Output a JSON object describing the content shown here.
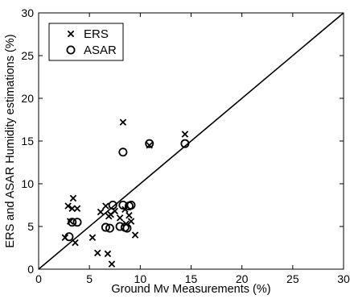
{
  "chart_data": {
    "type": "scatter",
    "title": "",
    "xlabel": "Ground Mv Measurements (%)",
    "ylabel": "ERS and ASAR Humidity estimations (%)",
    "xlim": [
      0,
      30
    ],
    "ylim": [
      0,
      30
    ],
    "xticks": [
      0,
      5,
      10,
      15,
      20,
      25,
      30
    ],
    "yticks": [
      0,
      5,
      10,
      15,
      20,
      25,
      30
    ],
    "xtick_labels": [
      "0",
      "5",
      "10",
      "15",
      "20",
      "25",
      "30"
    ],
    "ytick_labels": [
      "0",
      "5",
      "10",
      "15",
      "20",
      "25",
      "30"
    ],
    "grid": false,
    "legend_position": "top-left",
    "reference_line": {
      "from": [
        0,
        0
      ],
      "to": [
        30,
        30
      ]
    },
    "series": [
      {
        "name": "ERS",
        "marker": "x",
        "color": "#000000",
        "points": [
          [
            2.6,
            3.7
          ],
          [
            2.9,
            7.4
          ],
          [
            3.1,
            5.6
          ],
          [
            3.3,
            7.1
          ],
          [
            3.4,
            8.3
          ],
          [
            3.6,
            3.1
          ],
          [
            3.8,
            7.1
          ],
          [
            5.3,
            3.7
          ],
          [
            5.8,
            1.9
          ],
          [
            6.1,
            6.7
          ],
          [
            6.6,
            7.4
          ],
          [
            6.8,
            1.8
          ],
          [
            6.9,
            6.2
          ],
          [
            7.1,
            6.4
          ],
          [
            7.2,
            0.6
          ],
          [
            7.5,
            6.8
          ],
          [
            8.0,
            6.0
          ],
          [
            8.3,
            17.2
          ],
          [
            8.5,
            7.0
          ],
          [
            8.6,
            5.3
          ],
          [
            8.9,
            6.3
          ],
          [
            9.1,
            5.6
          ],
          [
            9.5,
            4.0
          ],
          [
            10.9,
            14.5
          ],
          [
            14.4,
            15.8
          ]
        ]
      },
      {
        "name": "ASAR",
        "marker": "o",
        "color": "#000000",
        "points": [
          [
            3.0,
            3.8
          ],
          [
            3.3,
            5.5
          ],
          [
            3.8,
            5.5
          ],
          [
            6.6,
            4.9
          ],
          [
            7.0,
            4.8
          ],
          [
            7.3,
            7.5
          ],
          [
            8.0,
            5.0
          ],
          [
            8.3,
            13.7
          ],
          [
            8.3,
            7.5
          ],
          [
            8.5,
            4.9
          ],
          [
            8.7,
            4.8
          ],
          [
            8.9,
            7.4
          ],
          [
            9.1,
            7.5
          ],
          [
            10.9,
            14.7
          ],
          [
            14.4,
            14.7
          ]
        ]
      }
    ]
  }
}
